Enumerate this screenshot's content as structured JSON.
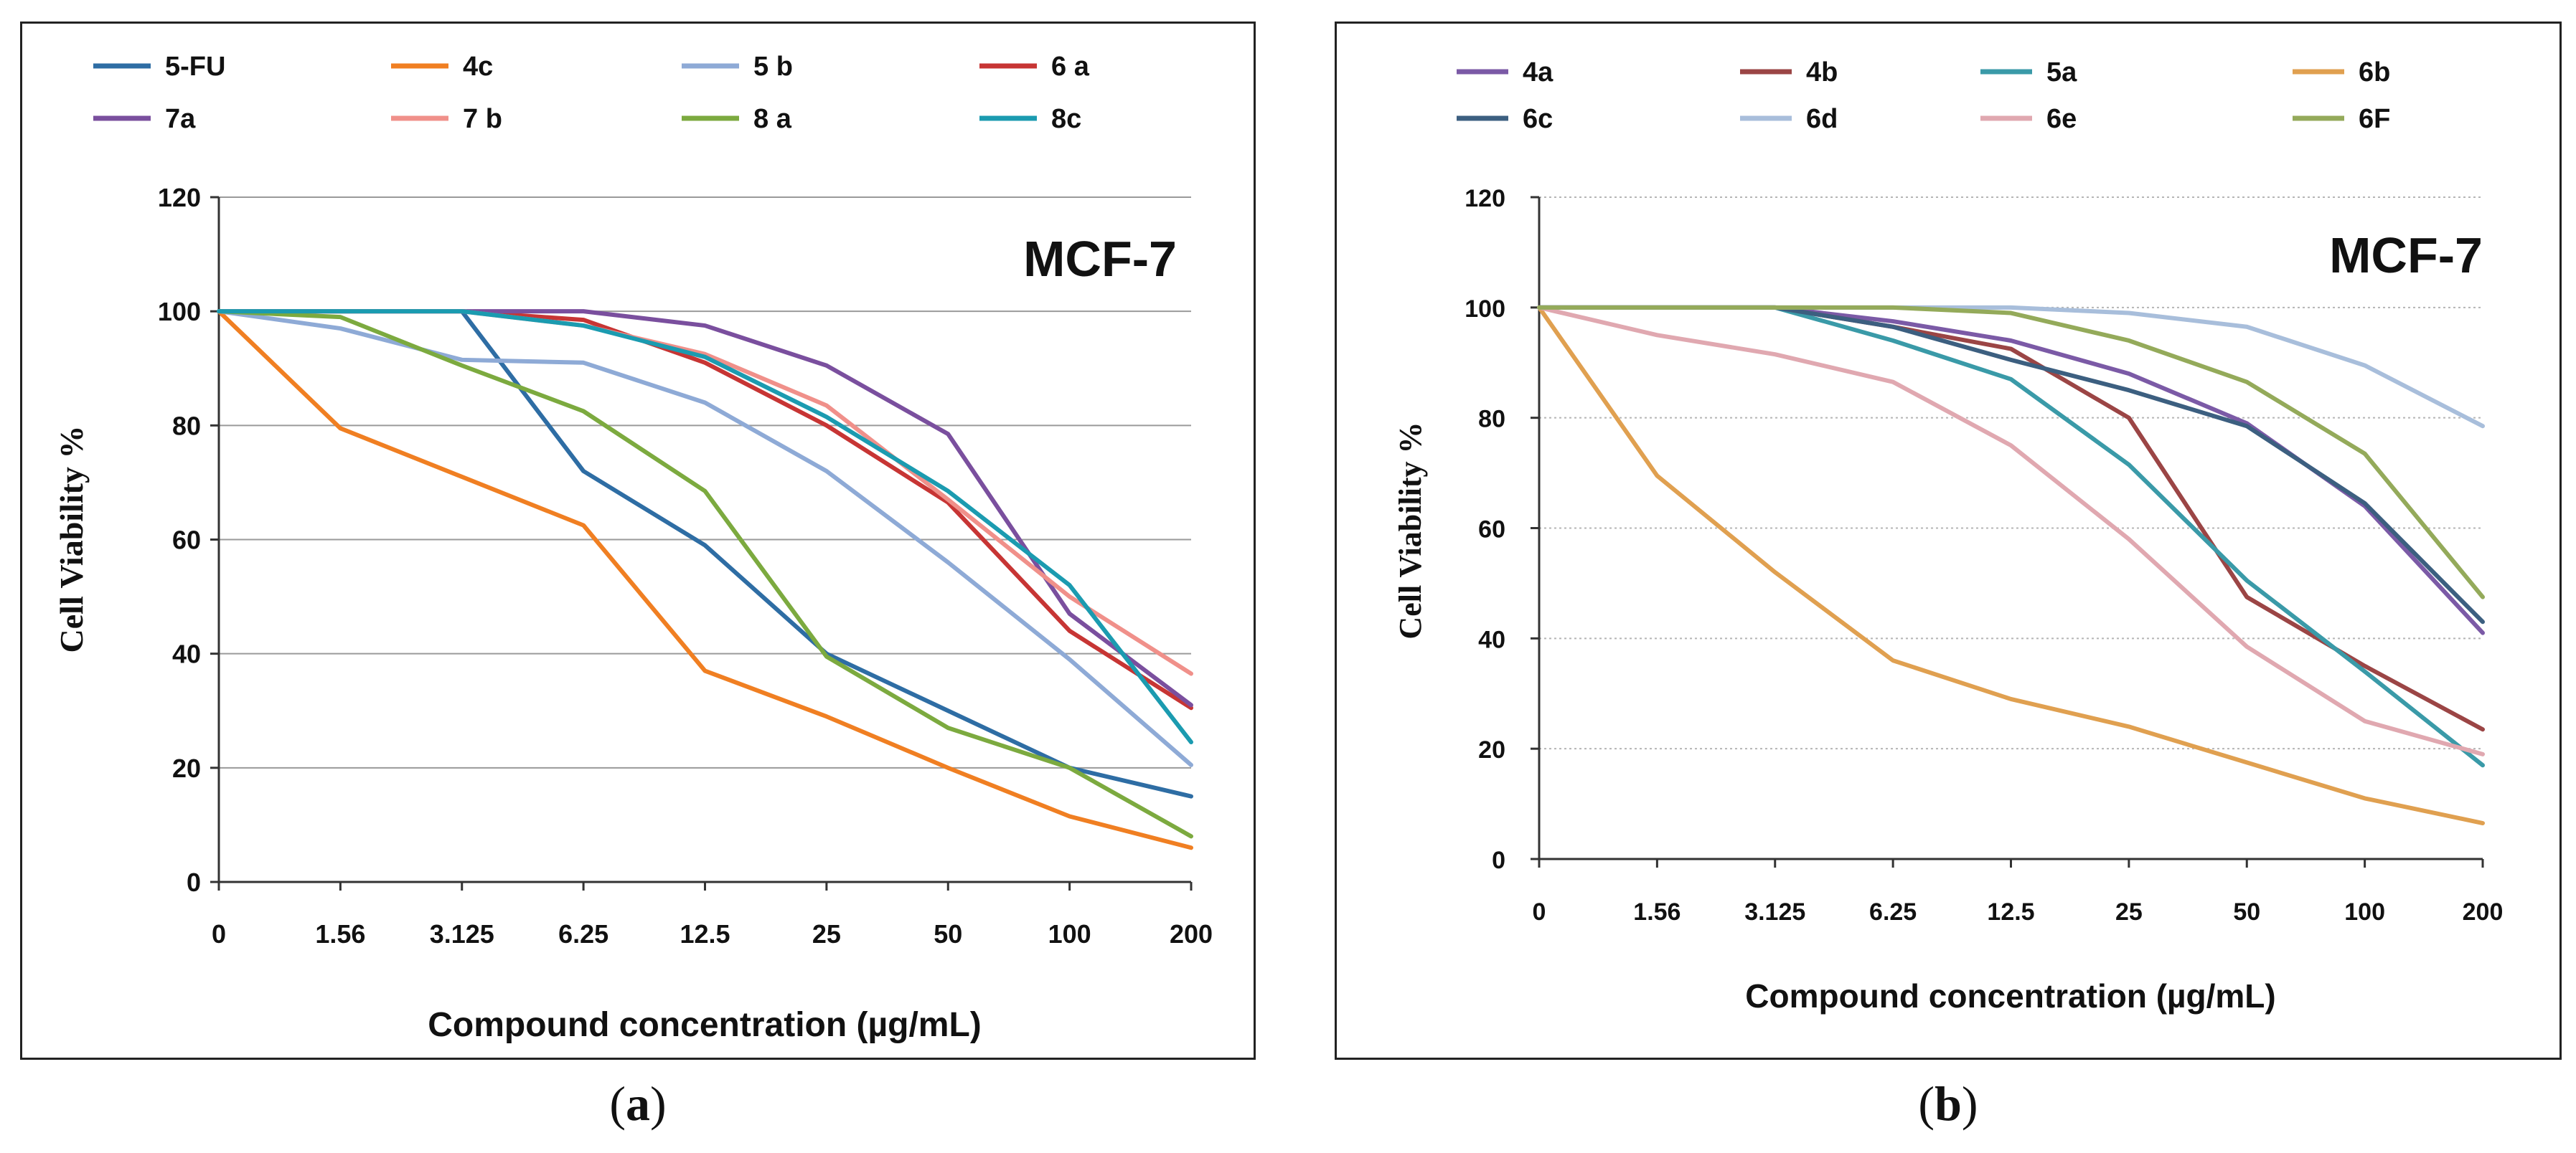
{
  "panels": [
    {
      "id": "a",
      "caption": "a",
      "chart_data": {
        "type": "line",
        "title": "MCF-7",
        "xlabel": "Compound concentration (µg/mL)",
        "ylabel": "Cell Viability %",
        "categories": [
          "0",
          "1.56",
          "3.125",
          "6.25",
          "12.5",
          "25",
          "50",
          "100",
          "200"
        ],
        "ylim": [
          0,
          120
        ],
        "yticks": [
          0,
          20,
          40,
          60,
          80,
          100,
          120
        ],
        "grid": true,
        "legend_position": "top",
        "series": [
          {
            "name": "5-FU",
            "color": "#2e6da4",
            "values": [
              100,
              100,
              100,
              72,
              59,
              40,
              30,
              20,
              15
            ]
          },
          {
            "name": "4c",
            "color": "#f07f22",
            "values": [
              100,
              79.5,
              71,
              62.5,
              37,
              29,
              20,
              11.5,
              6
            ]
          },
          {
            "name": "5 b",
            "color": "#8eaad6",
            "values": [
              100,
              97,
              91.5,
              91,
              84,
              72,
              56,
              39,
              20.5
            ]
          },
          {
            "name": "6 a",
            "color": "#c73534",
            "values": [
              100,
              100,
              100,
              98.5,
              91,
              80,
              66.5,
              44,
              30.5
            ]
          },
          {
            "name": "7a",
            "color": "#7a4f9e",
            "values": [
              100,
              100,
              100,
              100,
              97.5,
              90.5,
              78.5,
              47,
              31
            ]
          },
          {
            "name": "7 b",
            "color": "#f0908a",
            "values": [
              100,
              100,
              100,
              97.5,
              92.5,
              83.5,
              67,
              50,
              36.5
            ]
          },
          {
            "name": "8 a",
            "color": "#7caa3f",
            "values": [
              100,
              99,
              90.5,
              82.5,
              68.5,
              39.5,
              27,
              20,
              8
            ]
          },
          {
            "name": "8c",
            "color": "#1b9bb0",
            "values": [
              100,
              100,
              100,
              97.5,
              92,
              81.5,
              68.5,
              52,
              24.5
            ]
          }
        ]
      }
    },
    {
      "id": "b",
      "caption": "b",
      "chart_data": {
        "type": "line",
        "title": "MCF-7",
        "xlabel": "Compound concentration (µg/mL)",
        "ylabel": "Cell Viability %",
        "categories": [
          "0",
          "1.56",
          "3.125",
          "6.25",
          "12.5",
          "25",
          "50",
          "100",
          "200"
        ],
        "ylim": [
          0,
          120
        ],
        "yticks": [
          0,
          20,
          40,
          60,
          80,
          100,
          120
        ],
        "grid": true,
        "legend_position": "top",
        "series": [
          {
            "name": "4a",
            "color": "#7b5aa6",
            "values": [
              100,
              100,
              100,
              97.5,
              94,
              88,
              79,
              64,
              41
            ]
          },
          {
            "name": "4b",
            "color": "#9b4545",
            "values": [
              100,
              100,
              100,
              96.5,
              92.5,
              80,
              47.5,
              35,
              23.5
            ]
          },
          {
            "name": "5a",
            "color": "#3a9aa8",
            "values": [
              100,
              100,
              100,
              94,
              87,
              71.5,
              50.5,
              34,
              17
            ]
          },
          {
            "name": "6b",
            "color": "#e0a050",
            "values": [
              100,
              69.5,
              52,
              36,
              29,
              24,
              17.5,
              11,
              6.5
            ]
          },
          {
            "name": "6c",
            "color": "#3c5f80",
            "values": [
              100,
              100,
              100,
              96.5,
              90.5,
              85,
              78.5,
              64.5,
              43
            ]
          },
          {
            "name": "6d",
            "color": "#a8bedb",
            "values": [
              100,
              100,
              100,
              100,
              100,
              99,
              96.5,
              89.5,
              78.5
            ]
          },
          {
            "name": "6e",
            "color": "#e0a8b0",
            "values": [
              100,
              95,
              91.5,
              86.5,
              75,
              58,
              38.5,
              25,
              19
            ]
          },
          {
            "name": "6F",
            "color": "#94aa5a",
            "values": [
              100,
              100,
              100,
              100,
              99,
              94,
              86.5,
              73.5,
              47.5
            ]
          }
        ]
      }
    }
  ]
}
